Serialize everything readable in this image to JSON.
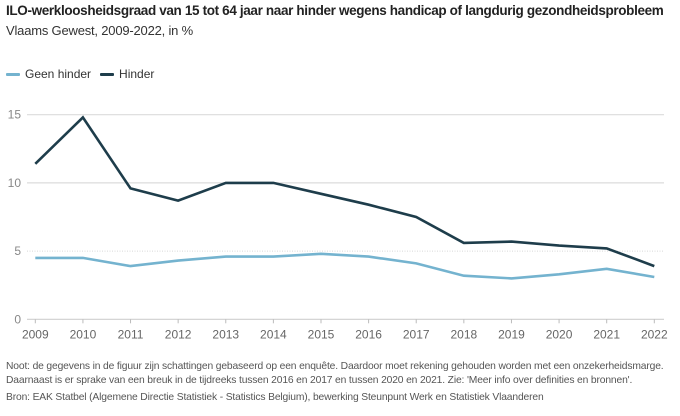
{
  "header": {
    "title": "ILO-werkloosheidsgraad van 15 tot 64 jaar naar hinder wegens handicap of langdurig gezondheidsprobleem",
    "subtitle": "Vlaams Gewest, 2009-2022, in %"
  },
  "legend": [
    {
      "label": "Geen hinder",
      "color": "#74b3cf"
    },
    {
      "label": "Hinder",
      "color": "#1e3d4b"
    }
  ],
  "chart_data": {
    "type": "line",
    "title": "ILO-werkloosheidsgraad van 15 tot 64 jaar naar hinder wegens handicap of langdurig gezondheidsprobleem",
    "subtitle": "Vlaams Gewest, 2009-2022, in %",
    "xlabel": "",
    "ylabel": "",
    "x": [
      "2009",
      "2010",
      "2011",
      "2012",
      "2013",
      "2014",
      "2015",
      "2016",
      "2017",
      "2018",
      "2019",
      "2020",
      "2021",
      "2022"
    ],
    "ylim": [
      0,
      15
    ],
    "yticks": [
      0,
      5,
      10,
      15
    ],
    "grid": true,
    "legend_position": "top-left",
    "series": [
      {
        "name": "Geen hinder",
        "color": "#74b3cf",
        "values": [
          4.5,
          4.5,
          3.9,
          4.3,
          4.6,
          4.6,
          4.8,
          4.6,
          4.1,
          3.2,
          3.0,
          3.3,
          3.7,
          3.1
        ]
      },
      {
        "name": "Hinder",
        "color": "#1e3d4b",
        "values": [
          11.4,
          14.8,
          9.6,
          8.7,
          10.0,
          10.0,
          9.2,
          8.4,
          7.5,
          5.6,
          5.7,
          5.4,
          5.2,
          3.9
        ]
      }
    ]
  },
  "footer": {
    "note_line1": "Noot: de gegevens in de figuur zijn schattingen gebaseerd op een enquête. Daardoor moet rekening gehouden worden met een onzekerheidsmarge.",
    "note_line2": "Daarnaast is er sprake van een breuk in de tijdreeks tussen 2016 en 2017 en tussen 2020 en 2021. Zie: 'Meer info over definities en bronnen'.",
    "source": "Bron: EAK Statbel (Algemene Directie Statistiek - Statistics Belgium), bewerking Steunpunt Werk en Statistiek Vlaanderen"
  }
}
